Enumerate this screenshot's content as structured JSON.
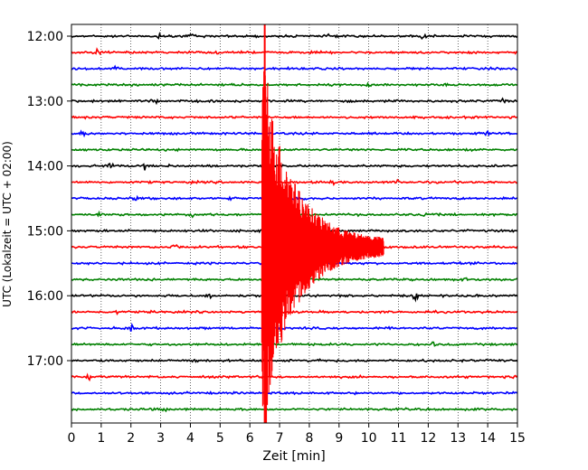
{
  "chart_data": {
    "type": "line",
    "title": "",
    "xlabel": "Zeit  [min]",
    "ylabel": "UTC (Lokalzeit = UTC + 02:00)",
    "xlim": [
      0,
      15
    ],
    "x_ticks": [
      "0",
      "1",
      "2",
      "3",
      "4",
      "5",
      "6",
      "7",
      "8",
      "9",
      "10",
      "11",
      "12",
      "13",
      "14",
      "15"
    ],
    "y_ticks": [
      {
        "label": "12:00",
        "trace": 0
      },
      {
        "label": "13:00",
        "trace": 4
      },
      {
        "label": "14:00",
        "trace": 8
      },
      {
        "label": "15:00",
        "trace": 12
      },
      {
        "label": "16:00",
        "trace": 16
      },
      {
        "label": "17:00",
        "trace": 20
      }
    ],
    "grid": "vertical dotted",
    "trace_interval_min": 15,
    "start_time": "12:00",
    "trace_count": 24,
    "colors": [
      "#000000",
      "#ff0000",
      "#0000ff",
      "#008000"
    ],
    "event": {
      "trace": 13,
      "start_min": 6.4,
      "end_min": 10.5,
      "color": "#ff0000"
    },
    "bursts": [
      {
        "trace": 0,
        "x": 3.0,
        "amp": 0.6
      },
      {
        "trace": 0,
        "x": 4.1,
        "amp": 0.7
      },
      {
        "trace": 0,
        "x": 8.7,
        "amp": 0.5
      },
      {
        "trace": 0,
        "x": 11.8,
        "amp": 0.7
      },
      {
        "trace": 1,
        "x": 0.9,
        "amp": 0.6
      },
      {
        "trace": 1,
        "x": 4.9,
        "amp": 0.5
      },
      {
        "trace": 2,
        "x": 1.5,
        "amp": 0.5
      },
      {
        "trace": 3,
        "x": 10.0,
        "amp": 0.5
      },
      {
        "trace": 3,
        "x": 5.4,
        "amp": 0.4
      },
      {
        "trace": 4,
        "x": 2.8,
        "amp": 0.5
      },
      {
        "trace": 4,
        "x": 14.5,
        "amp": 0.4
      },
      {
        "trace": 6,
        "x": 0.4,
        "amp": 0.5
      },
      {
        "trace": 6,
        "x": 14.0,
        "amp": 0.5
      },
      {
        "trace": 8,
        "x": 1.3,
        "amp": 0.7
      },
      {
        "trace": 8,
        "x": 2.5,
        "amp": 0.6
      },
      {
        "trace": 8,
        "x": 3.4,
        "amp": 0.4
      },
      {
        "trace": 8,
        "x": 7.1,
        "amp": 0.6
      },
      {
        "trace": 9,
        "x": 8.8,
        "amp": 0.5
      },
      {
        "trace": 9,
        "x": 11.0,
        "amp": 0.7
      },
      {
        "trace": 10,
        "x": 2.1,
        "amp": 0.5
      },
      {
        "trace": 10,
        "x": 5.4,
        "amp": 0.5
      },
      {
        "trace": 11,
        "x": 0.9,
        "amp": 0.7
      },
      {
        "trace": 11,
        "x": 4.0,
        "amp": 0.8
      },
      {
        "trace": 11,
        "x": 11.9,
        "amp": 0.4
      },
      {
        "trace": 13,
        "x": 3.5,
        "amp": 0.8
      },
      {
        "trace": 13,
        "x": 10.1,
        "amp": 0.7
      },
      {
        "trace": 15,
        "x": 13.3,
        "amp": 0.4
      },
      {
        "trace": 16,
        "x": 4.6,
        "amp": 0.8
      },
      {
        "trace": 16,
        "x": 11.6,
        "amp": 0.9
      },
      {
        "trace": 17,
        "x": 1.5,
        "amp": 0.5
      },
      {
        "trace": 18,
        "x": 2.0,
        "amp": 0.6
      },
      {
        "trace": 19,
        "x": 12.2,
        "amp": 0.5
      },
      {
        "trace": 20,
        "x": 4.1,
        "amp": 0.4
      },
      {
        "trace": 20,
        "x": 8.3,
        "amp": 0.5
      },
      {
        "trace": 21,
        "x": 0.6,
        "amp": 0.5
      },
      {
        "trace": 21,
        "x": 14.9,
        "amp": 0.6
      },
      {
        "trace": 23,
        "x": 3.1,
        "amp": 0.4
      }
    ]
  }
}
